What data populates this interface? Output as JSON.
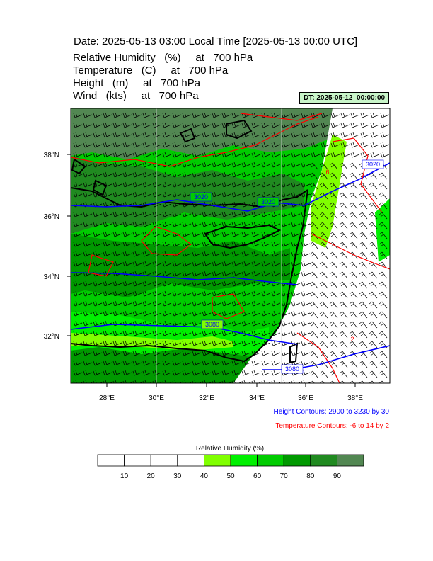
{
  "header": {
    "date_line": "Date: 2025-05-13  03:00 Local Time [2025-05-13  00:00 UTC]",
    "fields": [
      "Relative Humidity   (%)     at   700 hPa",
      "Temperature   (C)     at   700 hPa",
      "Height   (m)     at   700 hPa",
      "Wind   (kts)     at   700 hPa"
    ],
    "dt_label": "DT: 2025-05-12_00:00:00"
  },
  "map": {
    "lon_labels": [
      "28°E",
      "30°E",
      "32°E",
      "34°E",
      "36°E",
      "38°E"
    ],
    "lat_labels": [
      "38°N",
      "36°N",
      "34°N",
      "32°N"
    ],
    "height_contour_labels": [
      "3020",
      "3020",
      "3020",
      "3080",
      "3080"
    ],
    "temperature_contour_labels": [
      "6",
      "2"
    ],
    "colors": {
      "height_contour": "#0000ff",
      "temperature_contour": "#ff0000",
      "coastline": "#000000"
    }
  },
  "notes": {
    "height": "Height Contours: 2900 to 3230 by 30",
    "temperature": "Temperature Contours: -6 to 14 by 2"
  },
  "colorbar": {
    "title": "Relative Humidity  (%)",
    "tick_labels": [
      "10",
      "20",
      "30",
      "40",
      "50",
      "60",
      "70",
      "80",
      "90"
    ],
    "colors": [
      "#ffffff",
      "#ffffff",
      "#ffffff",
      "#ffffff",
      "#80ff00",
      "#00f000",
      "#00cc00",
      "#009900",
      "#208a20",
      "#528752"
    ]
  }
}
